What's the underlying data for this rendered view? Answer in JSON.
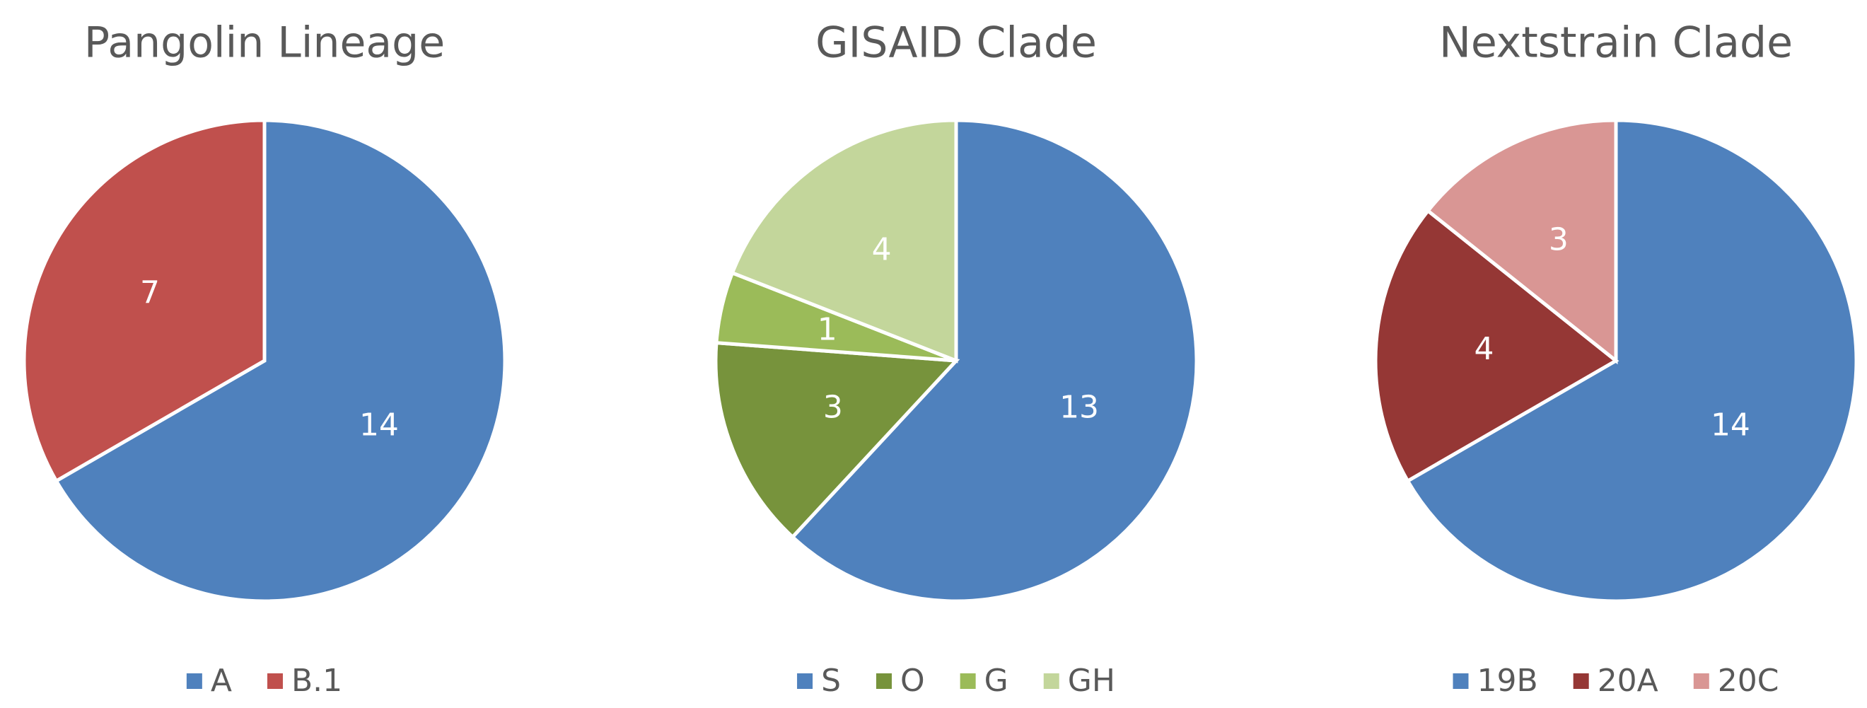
{
  "chart_data": [
    {
      "type": "pie",
      "title": "Pangolin Lineage",
      "categories": [
        "A",
        "B.1"
      ],
      "values": [
        14,
        7
      ],
      "colors": [
        "#4f81bd",
        "#c0504d"
      ]
    },
    {
      "type": "pie",
      "title": "GISAID Clade",
      "categories": [
        "S",
        "O",
        "G",
        "GH"
      ],
      "values": [
        13,
        3,
        1,
        4
      ],
      "colors": [
        "#4f81bd",
        "#77933c",
        "#9bbb59",
        "#c3d69b"
      ]
    },
    {
      "type": "pie",
      "title": "Nextstrain Clade",
      "categories": [
        "19B",
        "20A",
        "20C"
      ],
      "values": [
        14,
        4,
        3
      ],
      "colors": [
        "#4f81bd",
        "#953735",
        "#d99694"
      ]
    }
  ]
}
